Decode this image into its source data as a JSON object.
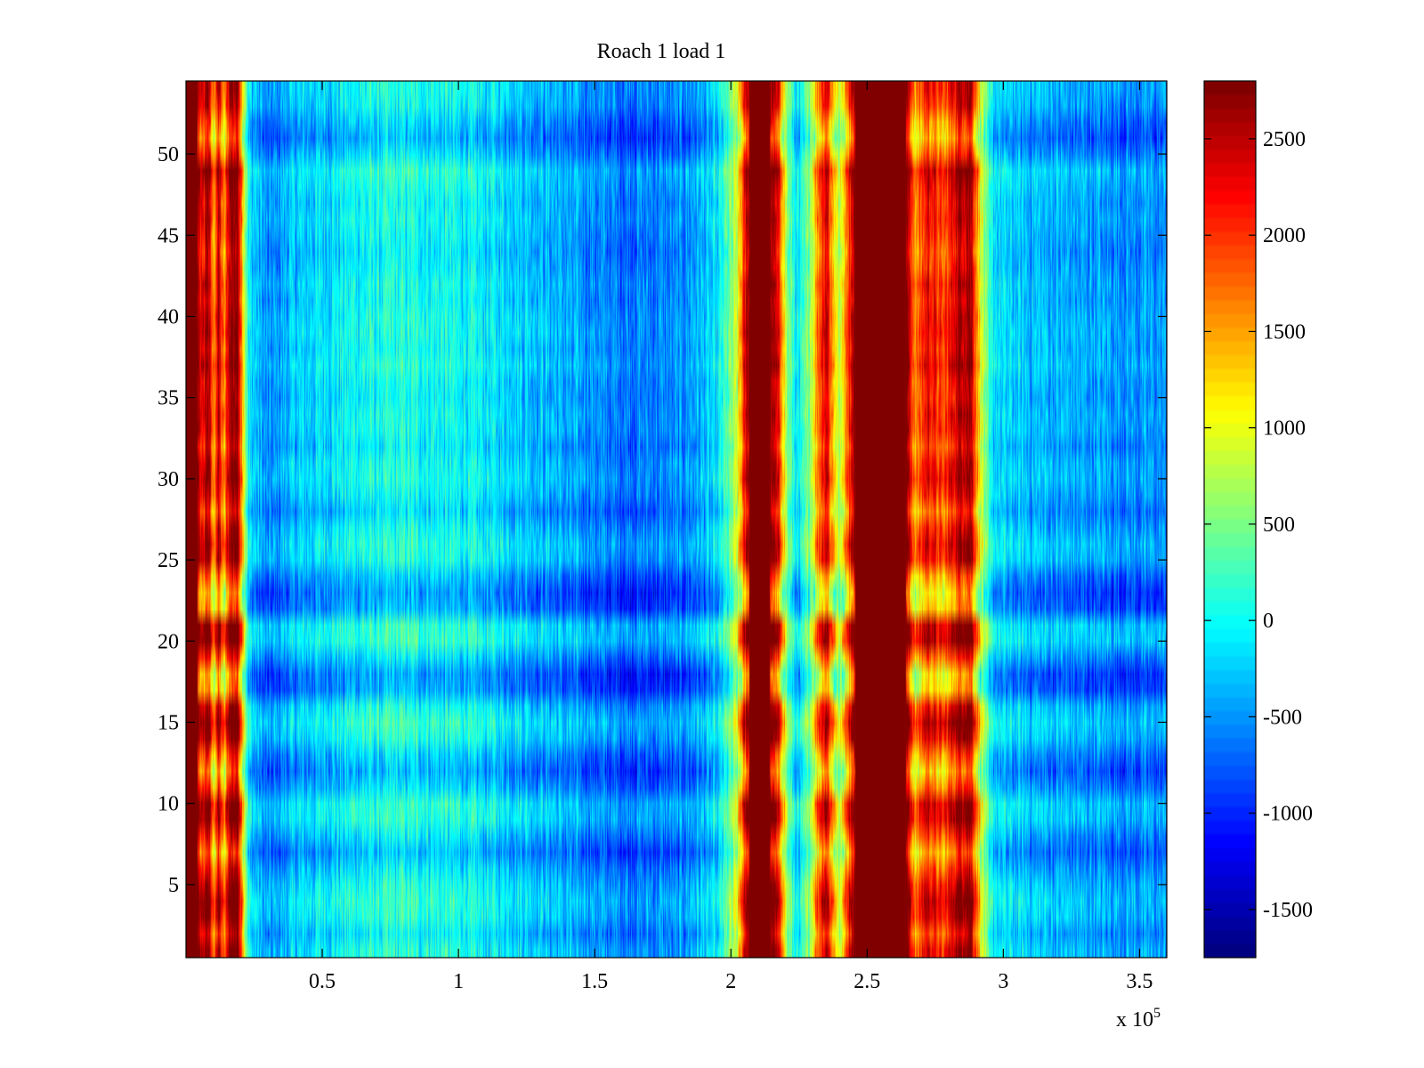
{
  "chart_data": {
    "type": "heatmap",
    "title": "Roach 1 load 1",
    "xlabel": "",
    "ylabel": "",
    "x_range": [
      0,
      360000
    ],
    "y_range": [
      0.5,
      54.5
    ],
    "x_ticks": [
      {
        "value": 50000,
        "label": "0.5"
      },
      {
        "value": 100000,
        "label": "1"
      },
      {
        "value": 150000,
        "label": "1.5"
      },
      {
        "value": 200000,
        "label": "2"
      },
      {
        "value": 250000,
        "label": "2.5"
      },
      {
        "value": 300000,
        "label": "3"
      },
      {
        "value": 350000,
        "label": "3.5"
      }
    ],
    "x_multiplier": {
      "prefix": "x 10",
      "exponent": "5"
    },
    "y_ticks": [
      {
        "value": 5,
        "label": "5"
      },
      {
        "value": 10,
        "label": "10"
      },
      {
        "value": 15,
        "label": "15"
      },
      {
        "value": 20,
        "label": "20"
      },
      {
        "value": 25,
        "label": "25"
      },
      {
        "value": 30,
        "label": "30"
      },
      {
        "value": 35,
        "label": "35"
      },
      {
        "value": 40,
        "label": "40"
      },
      {
        "value": 45,
        "label": "45"
      },
      {
        "value": 50,
        "label": "50"
      }
    ],
    "colorbar": {
      "colormap": "jet",
      "range": [
        -1750,
        2800
      ],
      "ticks": [
        {
          "value": -1500,
          "label": "-1500"
        },
        {
          "value": -1000,
          "label": "-1000"
        },
        {
          "value": -500,
          "label": "-500"
        },
        {
          "value": 0,
          "label": "0"
        },
        {
          "value": 500,
          "label": "500"
        },
        {
          "value": 1000,
          "label": "1000"
        },
        {
          "value": 1500,
          "label": "1500"
        },
        {
          "value": 2000,
          "label": "2000"
        },
        {
          "value": 2500,
          "label": "2500"
        }
      ]
    },
    "rows": 54,
    "column_profile": [
      {
        "x": 0,
        "value": 2800
      },
      {
        "x": 4000,
        "value": 2800
      },
      {
        "x": 6000,
        "value": 2000
      },
      {
        "x": 8000,
        "value": 2700
      },
      {
        "x": 10000,
        "value": 1400
      },
      {
        "x": 12000,
        "value": 2400
      },
      {
        "x": 14000,
        "value": 1300
      },
      {
        "x": 16000,
        "value": 2600
      },
      {
        "x": 19000,
        "value": 2700
      },
      {
        "x": 21000,
        "value": 1200
      },
      {
        "x": 23000,
        "value": -200
      },
      {
        "x": 30000,
        "value": -650
      },
      {
        "x": 40000,
        "value": -350
      },
      {
        "x": 60000,
        "value": -100
      },
      {
        "x": 80000,
        "value": 0
      },
      {
        "x": 100000,
        "value": -100
      },
      {
        "x": 120000,
        "value": -250
      },
      {
        "x": 140000,
        "value": -500
      },
      {
        "x": 160000,
        "value": -700
      },
      {
        "x": 180000,
        "value": -650
      },
      {
        "x": 195000,
        "value": -300
      },
      {
        "x": 202000,
        "value": 700
      },
      {
        "x": 207000,
        "value": 2800
      },
      {
        "x": 214000,
        "value": 2800
      },
      {
        "x": 218000,
        "value": 1900
      },
      {
        "x": 221000,
        "value": 400
      },
      {
        "x": 225000,
        "value": -300
      },
      {
        "x": 229000,
        "value": 600
      },
      {
        "x": 232000,
        "value": 1600
      },
      {
        "x": 235000,
        "value": 2400
      },
      {
        "x": 237000,
        "value": 1500
      },
      {
        "x": 240000,
        "value": 600
      },
      {
        "x": 243000,
        "value": 1900
      },
      {
        "x": 246000,
        "value": 2800
      },
      {
        "x": 264000,
        "value": 2800
      },
      {
        "x": 268000,
        "value": 1400
      },
      {
        "x": 272000,
        "value": 2200
      },
      {
        "x": 278000,
        "value": 1700
      },
      {
        "x": 283000,
        "value": 2400
      },
      {
        "x": 288000,
        "value": 2600
      },
      {
        "x": 291000,
        "value": 1200
      },
      {
        "x": 295000,
        "value": -100
      },
      {
        "x": 300000,
        "value": -300
      },
      {
        "x": 320000,
        "value": -450
      },
      {
        "x": 340000,
        "value": -550
      },
      {
        "x": 360000,
        "value": -600
      }
    ],
    "row_profile": [
      {
        "y": 1,
        "value": 0.35
      },
      {
        "y": 2,
        "value": -0.05
      },
      {
        "y": 3,
        "value": 0.4
      },
      {
        "y": 4,
        "value": 0.55
      },
      {
        "y": 5,
        "value": 0.3
      },
      {
        "y": 6,
        "value": -0.1
      },
      {
        "y": 7,
        "value": -0.6
      },
      {
        "y": 8,
        "value": -0.1
      },
      {
        "y": 9,
        "value": 0.45
      },
      {
        "y": 10,
        "value": 0.5
      },
      {
        "y": 11,
        "value": -0.3
      },
      {
        "y": 12,
        "value": -0.75
      },
      {
        "y": 13,
        "value": -0.35
      },
      {
        "y": 14,
        "value": 0.3
      },
      {
        "y": 15,
        "value": 0.6
      },
      {
        "y": 16,
        "value": 0.2
      },
      {
        "y": 17,
        "value": -0.85
      },
      {
        "y": 18,
        "value": -0.95
      },
      {
        "y": 19,
        "value": -0.2
      },
      {
        "y": 20,
        "value": 0.6
      },
      {
        "y": 21,
        "value": 0.55
      },
      {
        "y": 22,
        "value": -0.75
      },
      {
        "y": 23,
        "value": -0.95
      },
      {
        "y": 24,
        "value": -0.5
      },
      {
        "y": 25,
        "value": 0.25
      },
      {
        "y": 26,
        "value": 0.4
      },
      {
        "y": 27,
        "value": 0.1
      },
      {
        "y": 28,
        "value": -0.3
      },
      {
        "y": 29,
        "value": 0.05
      },
      {
        "y": 30,
        "value": 0.3
      },
      {
        "y": 31,
        "value": 0.2
      },
      {
        "y": 32,
        "value": -0.1
      },
      {
        "y": 33,
        "value": 0.15
      },
      {
        "y": 34,
        "value": 0.2
      },
      {
        "y": 35,
        "value": 0.05
      },
      {
        "y": 36,
        "value": 0.1
      },
      {
        "y": 37,
        "value": 0.35
      },
      {
        "y": 38,
        "value": 0.15
      },
      {
        "y": 39,
        "value": 0.3
      },
      {
        "y": 40,
        "value": 0.25
      },
      {
        "y": 41,
        "value": 0.1
      },
      {
        "y": 42,
        "value": 0.2
      },
      {
        "y": 43,
        "value": 0.0
      },
      {
        "y": 44,
        "value": -0.1
      },
      {
        "y": 45,
        "value": 0.05
      },
      {
        "y": 46,
        "value": 0.2
      },
      {
        "y": 47,
        "value": 0.1
      },
      {
        "y": 48,
        "value": 0.25
      },
      {
        "y": 49,
        "value": 0.5
      },
      {
        "y": 50,
        "value": -0.2
      },
      {
        "y": 51,
        "value": -0.7
      },
      {
        "y": 52,
        "value": -0.4
      },
      {
        "y": 53,
        "value": 0.05
      },
      {
        "y": 54,
        "value": 0.2
      }
    ]
  }
}
